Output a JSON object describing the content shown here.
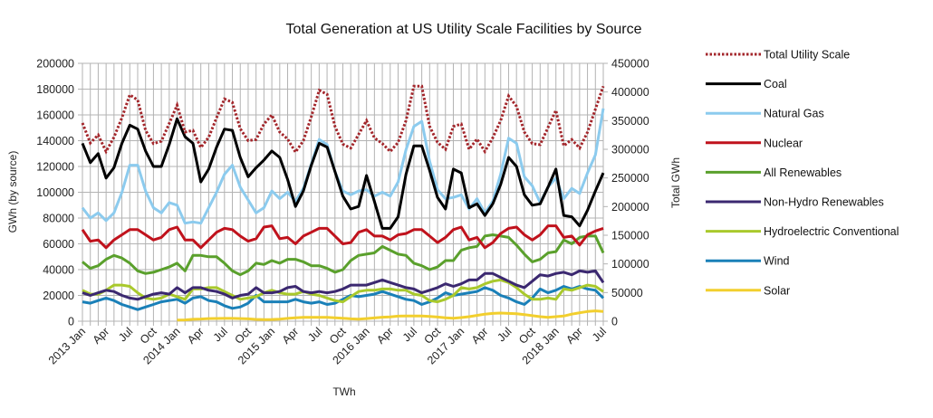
{
  "chart_data": {
    "type": "line",
    "title": "Total Generation at US Utility Scale Facilities by Source",
    "xlabel": "TWh",
    "ylabel": "GWh (by source)",
    "y2label": "Total GWh",
    "ylim": [
      0,
      200000
    ],
    "y2lim": [
      0,
      450000
    ],
    "yticks": [
      0,
      20000,
      40000,
      60000,
      80000,
      100000,
      120000,
      140000,
      160000,
      180000,
      200000
    ],
    "y2ticks": [
      0,
      50000,
      100000,
      150000,
      200000,
      250000,
      300000,
      350000,
      400000,
      450000
    ],
    "grid": true,
    "legend_position": "right",
    "x_tick_labels": [
      "2013 Jan",
      "Apr",
      "Jul",
      "Oct",
      "2014 Jan",
      "Apr",
      "Jul",
      "Oct",
      "2015 Jan",
      "Apr",
      "Jul",
      "Oct",
      "2016 Jan",
      "Apr",
      "Jul",
      "Oct",
      "2017 Jan",
      "Apr",
      "Jul",
      "Oct",
      "2018 Jan",
      "Apr",
      "Jul"
    ],
    "x": [
      "2013-01",
      "2013-02",
      "2013-03",
      "2013-04",
      "2013-05",
      "2013-06",
      "2013-07",
      "2013-08",
      "2013-09",
      "2013-10",
      "2013-11",
      "2013-12",
      "2014-01",
      "2014-02",
      "2014-03",
      "2014-04",
      "2014-05",
      "2014-06",
      "2014-07",
      "2014-08",
      "2014-09",
      "2014-10",
      "2014-11",
      "2014-12",
      "2015-01",
      "2015-02",
      "2015-03",
      "2015-04",
      "2015-05",
      "2015-06",
      "2015-07",
      "2015-08",
      "2015-09",
      "2015-10",
      "2015-11",
      "2015-12",
      "2016-01",
      "2016-02",
      "2016-03",
      "2016-04",
      "2016-05",
      "2016-06",
      "2016-07",
      "2016-08",
      "2016-09",
      "2016-10",
      "2016-11",
      "2016-12",
      "2017-01",
      "2017-02",
      "2017-03",
      "2017-04",
      "2017-05",
      "2017-06",
      "2017-07",
      "2017-08",
      "2017-09",
      "2017-10",
      "2017-11",
      "2017-12",
      "2018-01",
      "2018-02",
      "2018-03",
      "2018-04",
      "2018-05",
      "2018-06",
      "2018-07"
    ],
    "series": [
      {
        "name": "Total Utility Scale",
        "axis": "right",
        "color": "#a3262b",
        "dash": "dotted",
        "values": [
          346000,
          311000,
          325000,
          296000,
          321000,
          355000,
          395000,
          386000,
          333000,
          310000,
          314000,
          345000,
          377000,
          330000,
          333000,
          303000,
          321000,
          355000,
          388000,
          382000,
          336000,
          315000,
          317000,
          344000,
          360000,
          330000,
          318000,
          295000,
          315000,
          357000,
          403000,
          396000,
          340000,
          309000,
          302000,
          326000,
          350000,
          320000,
          310000,
          296000,
          312000,
          350000,
          410000,
          410000,
          340000,
          312000,
          300000,
          340000,
          344000,
          300000,
          318000,
          296000,
          320000,
          350000,
          393000,
          375000,
          330000,
          310000,
          308000,
          338000,
          368000,
          306000,
          317000,
          302000,
          330000,
          370000,
          410000
        ]
      },
      {
        "name": "Coal",
        "axis": "left",
        "color": "#000000",
        "values": [
          138000,
          123000,
          130000,
          111000,
          119000,
          138000,
          152000,
          149000,
          132000,
          120000,
          120000,
          137000,
          157000,
          143000,
          138000,
          108000,
          118000,
          135000,
          149000,
          148000,
          127000,
          112000,
          119000,
          125000,
          132000,
          127000,
          110000,
          89000,
          101000,
          121000,
          138000,
          135000,
          116000,
          97000,
          87000,
          89000,
          113000,
          93000,
          72000,
          72000,
          81000,
          114000,
          136000,
          136000,
          117000,
          96000,
          87000,
          118000,
          115000,
          88000,
          91000,
          82000,
          91000,
          106000,
          127000,
          120000,
          98000,
          90000,
          91000,
          104000,
          118000,
          82000,
          81000,
          74000,
          86000,
          101000,
          115000
        ]
      },
      {
        "name": "Natural Gas",
        "axis": "left",
        "color": "#8ccbee",
        "values": [
          88000,
          80000,
          84000,
          78000,
          84000,
          100000,
          121000,
          121000,
          101000,
          88000,
          84000,
          92000,
          90000,
          76000,
          77000,
          76000,
          88000,
          100000,
          114000,
          121000,
          104000,
          94000,
          84000,
          88000,
          101000,
          95000,
          100000,
          93000,
          103000,
          122000,
          141000,
          137000,
          116000,
          101000,
          98000,
          101000,
          102000,
          97000,
          100000,
          97000,
          108000,
          133000,
          151000,
          155000,
          124000,
          102000,
          95000,
          96000,
          98000,
          87000,
          95000,
          84000,
          93000,
          114000,
          142000,
          138000,
          112000,
          105000,
          92000,
          104000,
          111000,
          95000,
          103000,
          99000,
          115000,
          129000,
          165000
        ]
      },
      {
        "name": "Nuclear",
        "axis": "left",
        "color": "#c0121c",
        "values": [
          71000,
          62000,
          63000,
          57000,
          63000,
          67000,
          71000,
          71000,
          67000,
          63000,
          65000,
          71000,
          73000,
          63000,
          63000,
          57000,
          63000,
          69000,
          72000,
          71000,
          66000,
          62000,
          64000,
          73000,
          74000,
          64000,
          65000,
          60000,
          66000,
          69000,
          72000,
          72000,
          66000,
          60000,
          61000,
          69000,
          71000,
          66000,
          66000,
          63000,
          67000,
          68000,
          71000,
          71000,
          66000,
          61000,
          65000,
          71000,
          73000,
          63000,
          65000,
          57000,
          61000,
          68000,
          72000,
          73000,
          67000,
          63000,
          67000,
          74000,
          74000,
          65000,
          66000,
          59000,
          67000,
          70000,
          72000
        ]
      },
      {
        "name": "All Renewables",
        "axis": "left",
        "color": "#5aa02c",
        "values": [
          46000,
          41000,
          43000,
          48000,
          51000,
          49000,
          45000,
          39000,
          37000,
          38000,
          40000,
          42000,
          45000,
          39000,
          51000,
          51000,
          50000,
          50000,
          45000,
          39000,
          36000,
          39000,
          45000,
          44000,
          47000,
          45000,
          48000,
          48000,
          46000,
          43000,
          43000,
          41000,
          38000,
          40000,
          47000,
          51000,
          52000,
          53000,
          58000,
          55000,
          52000,
          51000,
          45000,
          43000,
          40000,
          42000,
          47000,
          47000,
          55000,
          57000,
          58000,
          66000,
          67000,
          66000,
          65000,
          59000,
          52000,
          46000,
          48000,
          53000,
          54000,
          63000,
          60000,
          65000,
          66000,
          66000,
          53000
        ]
      },
      {
        "name": "Non-Hydro Renewables",
        "axis": "left",
        "color": "#3b2870",
        "values": [
          22000,
          20000,
          22000,
          24000,
          23000,
          20000,
          18000,
          17000,
          19000,
          21000,
          22000,
          21000,
          26000,
          22000,
          26000,
          26000,
          24000,
          23000,
          21000,
          18000,
          20000,
          21000,
          26000,
          22000,
          22000,
          23000,
          26000,
          27000,
          23000,
          22000,
          23000,
          22000,
          23000,
          25000,
          28000,
          28000,
          28000,
          30000,
          32000,
          30000,
          28000,
          26000,
          25000,
          22000,
          24000,
          26000,
          29000,
          27000,
          29000,
          32000,
          32000,
          37000,
          37000,
          34000,
          31000,
          28000,
          26000,
          31000,
          36000,
          35000,
          37000,
          38000,
          36000,
          39000,
          38000,
          39000,
          30000
        ]
      },
      {
        "name": "Hydroelectric Conventional",
        "axis": "left",
        "color": "#a9c92c",
        "values": [
          24000,
          21000,
          21000,
          24000,
          28000,
          28000,
          27000,
          22000,
          18000,
          17000,
          18000,
          21000,
          19000,
          17000,
          25000,
          25000,
          26000,
          26000,
          23000,
          20000,
          17000,
          18000,
          19000,
          22000,
          24000,
          22000,
          21000,
          21000,
          23000,
          21000,
          20000,
          18000,
          16000,
          15000,
          19000,
          23000,
          24000,
          24000,
          25000,
          25000,
          24000,
          24000,
          21000,
          20000,
          16000,
          15000,
          17000,
          20000,
          26000,
          25000,
          26000,
          29000,
          31000,
          32000,
          30000,
          26000,
          21000,
          17000,
          17000,
          18000,
          17000,
          25000,
          24000,
          26000,
          28000,
          27000,
          23000
        ]
      },
      {
        "name": "Wind",
        "axis": "left",
        "color": "#1a80b8",
        "values": [
          15000,
          14000,
          16000,
          18000,
          16000,
          13000,
          11000,
          9000,
          11000,
          13000,
          15000,
          16000,
          17000,
          14000,
          18000,
          19000,
          16000,
          15000,
          12000,
          10000,
          11000,
          14000,
          20000,
          15000,
          15000,
          15000,
          15000,
          17000,
          15000,
          14000,
          15000,
          13000,
          14000,
          17000,
          20000,
          19000,
          20000,
          21000,
          23000,
          21000,
          19000,
          17000,
          16000,
          13000,
          15000,
          18000,
          22000,
          20000,
          21000,
          22000,
          23000,
          26000,
          24000,
          20000,
          18000,
          15000,
          13000,
          18000,
          25000,
          22000,
          24000,
          27000,
          25000,
          27000,
          25000,
          24000,
          18000
        ]
      },
      {
        "name": "Solar",
        "axis": "left",
        "color": "#f2cf2e",
        "values": [
          null,
          null,
          null,
          null,
          null,
          null,
          null,
          null,
          null,
          null,
          null,
          null,
          900,
          1000,
          1500,
          1700,
          2000,
          2100,
          2200,
          2200,
          2000,
          1800,
          1400,
          1200,
          1300,
          1600,
          2200,
          2600,
          3000,
          3000,
          3000,
          3000,
          2700,
          2300,
          1800,
          1600,
          2000,
          2500,
          3100,
          3400,
          3900,
          4000,
          4100,
          4100,
          3700,
          3200,
          2600,
          2300,
          2800,
          3500,
          4500,
          5500,
          6000,
          6300,
          6000,
          5800,
          5100,
          4300,
          3500,
          3000,
          3500,
          4000,
          5500,
          6500,
          7500,
          8000,
          7500
        ]
      }
    ]
  }
}
